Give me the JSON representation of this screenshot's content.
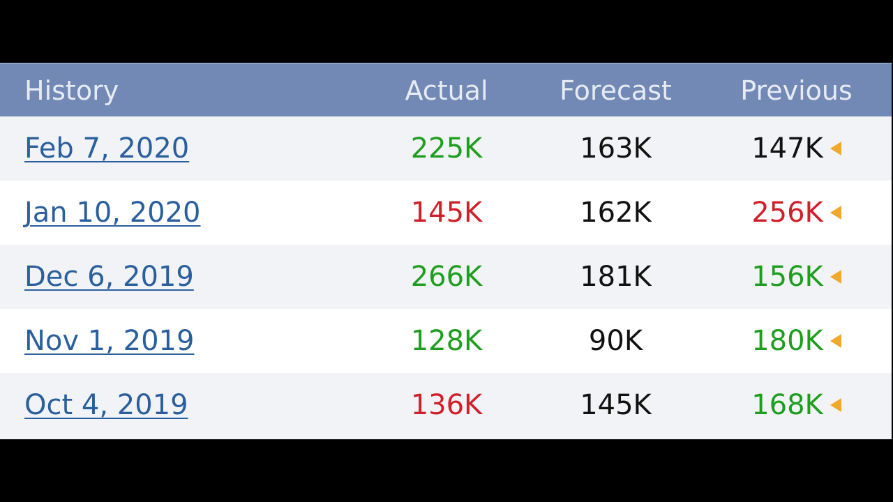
{
  "colors": {
    "header_bg": "#7289b6",
    "header_text": "#e6ebf4",
    "link": "#2a5f9e",
    "better": "#1e9e1e",
    "worse": "#d01f2a",
    "neutral": "#111111",
    "arrow": "#f0a92a"
  },
  "header": {
    "history": "History",
    "actual": "Actual",
    "forecast": "Forecast",
    "previous": "Previous"
  },
  "rows": [
    {
      "date": "Feb 7, 2020",
      "actual": "225K",
      "actual_status": "green",
      "forecast": "163K",
      "previous": "147K",
      "previous_status": "black",
      "arrow_icon": "revision-arrow-icon"
    },
    {
      "date": "Jan 10, 2020",
      "actual": "145K",
      "actual_status": "red",
      "forecast": "162K",
      "previous": "256K",
      "previous_status": "red",
      "arrow_icon": "revision-arrow-icon"
    },
    {
      "date": "Dec 6, 2019",
      "actual": "266K",
      "actual_status": "green",
      "forecast": "181K",
      "previous": "156K",
      "previous_status": "green",
      "arrow_icon": "revision-arrow-icon"
    },
    {
      "date": "Nov 1, 2019",
      "actual": "128K",
      "actual_status": "green",
      "forecast": "90K",
      "previous": "180K",
      "previous_status": "green",
      "arrow_icon": "revision-arrow-icon"
    },
    {
      "date": "Oct 4, 2019",
      "actual": "136K",
      "actual_status": "red",
      "forecast": "145K",
      "previous": "168K",
      "previous_status": "green",
      "arrow_icon": "revision-arrow-icon"
    }
  ]
}
